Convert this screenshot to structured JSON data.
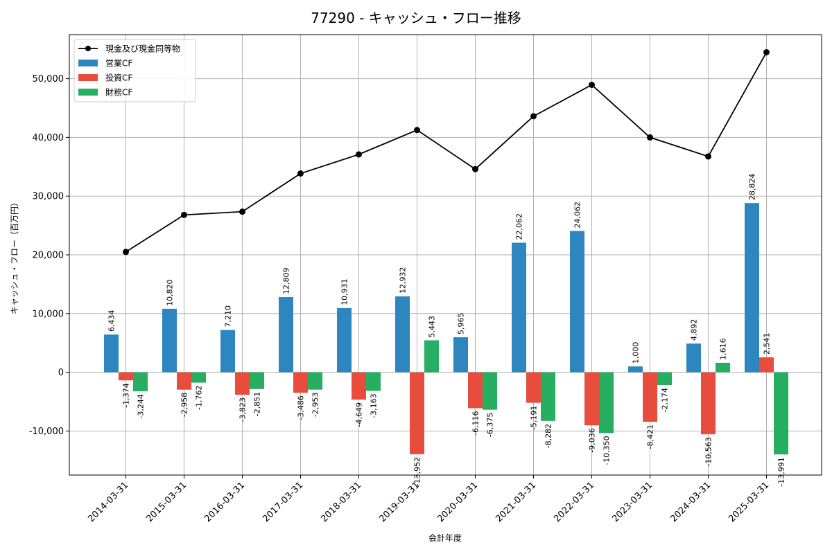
{
  "chart_data": {
    "type": "bar",
    "title": "77290 - キャッシュ・フロー推移",
    "xlabel": "会計年度",
    "ylabel": "キャッシュ・フロー（百万円）",
    "ylim": [
      -17500,
      57500
    ],
    "yticks": [
      -10000,
      0,
      10000,
      20000,
      30000,
      40000,
      50000
    ],
    "ytick_labels": [
      "-10,000",
      "0",
      "10,000",
      "20,000",
      "30,000",
      "40,000",
      "50,000"
    ],
    "grid": true,
    "legend_position": "top-left",
    "categories": [
      "2014-03-31",
      "2015-03-31",
      "2016-03-31",
      "2017-03-31",
      "2018-03-31",
      "2019-03-31",
      "2020-03-31",
      "2021-03-31",
      "2022-03-31",
      "2023-03-31",
      "2024-03-31",
      "2025-03-31"
    ],
    "series": [
      {
        "name": "営業CF",
        "type": "bar",
        "color": "#2e86c1",
        "values": [
          6434,
          10820,
          7210,
          12809,
          10931,
          12932,
          5965,
          22062,
          24062,
          1000,
          4892,
          28824
        ],
        "labels": [
          "6,434",
          "10,820",
          "7,210",
          "12,809",
          "10,931",
          "12,932",
          "5,965",
          "22,062",
          "24,062",
          "1,000",
          "4,892",
          "28,824"
        ]
      },
      {
        "name": "投資CF",
        "type": "bar",
        "color": "#e74c3c",
        "values": [
          -1374,
          -2958,
          -3823,
          -3486,
          -4649,
          -13952,
          -6116,
          -5191,
          -9036,
          -8421,
          -10563,
          2541
        ],
        "labels": [
          "-1,374",
          "-2,958",
          "-3,823",
          "-3,486",
          "-4,649",
          "-13,952",
          "-6,116",
          "-5,191",
          "-9,036",
          "-8,421",
          "-10,563",
          "2,541"
        ]
      },
      {
        "name": "財務CF",
        "type": "bar",
        "color": "#27ae60",
        "values": [
          -3244,
          -1762,
          -2851,
          -2953,
          -3163,
          5443,
          -6375,
          -8282,
          -10350,
          -2174,
          1616,
          -13991
        ],
        "labels": [
          "-3,244",
          "-1,762",
          "-2,851",
          "-2,953",
          "-3,163",
          "5,443",
          "-6,375",
          "-8,282",
          "-10,350",
          "-2,174",
          "1,616",
          "-13,991"
        ]
      },
      {
        "name": "現金及び現金同等物",
        "type": "line",
        "color": "#000000",
        "values": [
          20500,
          26800,
          27350,
          33850,
          37100,
          41250,
          34600,
          43600,
          48950,
          40000,
          36750,
          54500
        ]
      }
    ]
  }
}
